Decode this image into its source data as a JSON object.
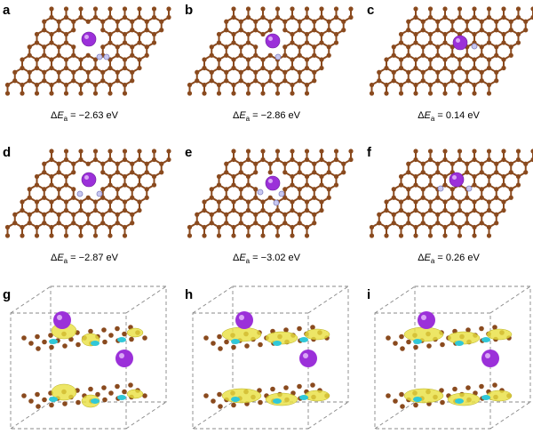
{
  "panels": [
    {
      "label": "a",
      "delta": "Δ",
      "symbol": "E",
      "sub": "a",
      "rest": " = −2.63 eV"
    },
    {
      "label": "b",
      "delta": "Δ",
      "symbol": "E",
      "sub": "a",
      "rest": " = −2.86 eV"
    },
    {
      "label": "c",
      "delta": "Δ",
      "symbol": "E",
      "sub": "a",
      "rest": " = 0.14 eV"
    },
    {
      "label": "d",
      "delta": "Δ",
      "symbol": "E",
      "sub": "a",
      "rest": " = −2.87 eV"
    },
    {
      "label": "e",
      "delta": "Δ",
      "symbol": "E",
      "sub": "a",
      "rest": " = −3.02 eV"
    },
    {
      "label": "f",
      "delta": "Δ",
      "symbol": "E",
      "sub": "a",
      "rest": " = 0.26 eV"
    },
    {
      "label": "g"
    },
    {
      "label": "h"
    },
    {
      "label": "i"
    }
  ]
}
